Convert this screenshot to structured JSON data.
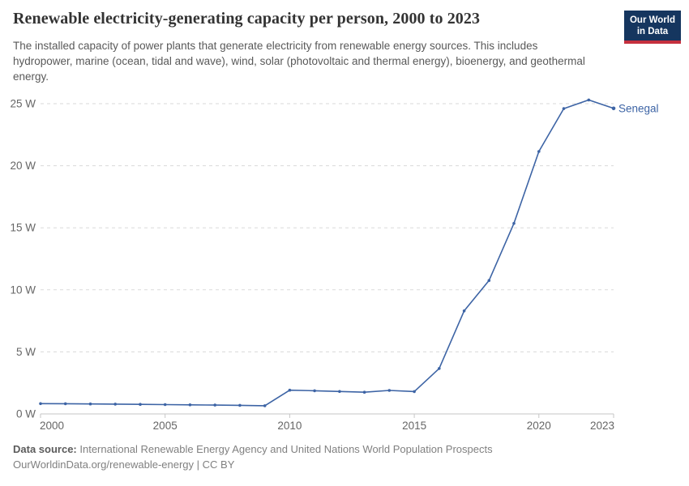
{
  "header": {
    "title": "Renewable electricity-generating capacity per person, 2000 to 2023",
    "subtitle": "The installed capacity of power plants that generate electricity from renewable energy sources. This includes hydropower, marine (ocean, tidal and wave), wind, solar (photovoltaic and thermal energy), bioenergy, and geothermal energy."
  },
  "logo": {
    "line1": "Our World",
    "line2": "in Data",
    "bg_color": "#15365f",
    "accent_color": "#c5303e"
  },
  "footer": {
    "datasource_label": "Data source:",
    "datasource_text": " International Renewable Energy Agency and United Nations World Population Prospects",
    "link": "OurWorldinData.org/renewable-energy",
    "license": " | CC BY"
  },
  "chart_data": {
    "type": "line",
    "title": "Renewable electricity-generating capacity per person, 2000 to 2023",
    "xlabel": "",
    "ylabel": "",
    "unit": "W",
    "grid": "horizontal-dashed",
    "legend": "end-of-line-label",
    "ylim": [
      0,
      25
    ],
    "xlim": [
      2000,
      2023
    ],
    "x": [
      2000,
      2001,
      2002,
      2003,
      2004,
      2005,
      2006,
      2007,
      2008,
      2009,
      2010,
      2011,
      2012,
      2013,
      2014,
      2015,
      2016,
      2017,
      2018,
      2019,
      2020,
      2021,
      2022,
      2023
    ],
    "series": [
      {
        "name": "Senegal",
        "color": "#3d64a5",
        "values": [
          0.83,
          0.82,
          0.8,
          0.79,
          0.77,
          0.75,
          0.73,
          0.71,
          0.69,
          0.66,
          1.91,
          1.87,
          1.81,
          1.75,
          1.89,
          1.8,
          3.66,
          8.3,
          10.75,
          15.35,
          21.15,
          24.6,
          25.3,
          24.62
        ]
      }
    ],
    "yticks": [
      {
        "value": 0,
        "label": "0 W"
      },
      {
        "value": 5,
        "label": "5 W"
      },
      {
        "value": 10,
        "label": "10 W"
      },
      {
        "value": 15,
        "label": "15 W"
      },
      {
        "value": 20,
        "label": "20 W"
      },
      {
        "value": 25,
        "label": "25 W"
      }
    ],
    "xticks": [
      {
        "value": 2000,
        "label": "2000"
      },
      {
        "value": 2005,
        "label": "2005"
      },
      {
        "value": 2010,
        "label": "2010"
      },
      {
        "value": 2015,
        "label": "2015"
      },
      {
        "value": 2020,
        "label": "2020"
      },
      {
        "value": 2023,
        "label": "2023"
      }
    ],
    "colors": {
      "grid": "#dadada",
      "axis": "#c6c6c6",
      "tick_label": "#666666"
    }
  }
}
